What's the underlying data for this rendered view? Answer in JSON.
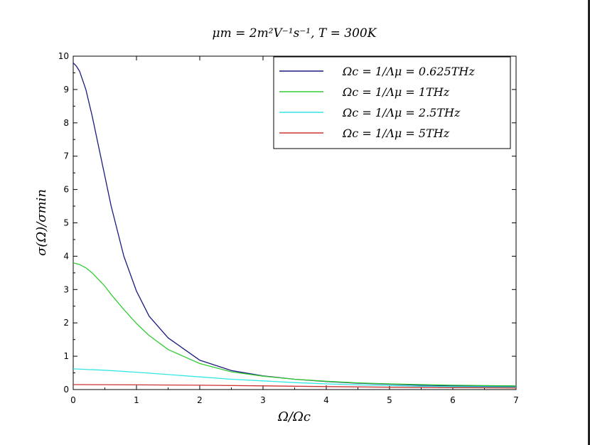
{
  "chart_data": {
    "type": "line",
    "title": "μm = 2m²V⁻¹s⁻¹, T = 300K",
    "xlabel": "Ω/Ωc",
    "ylabel": "σ(Ω)/σmin",
    "xlim": [
      0,
      7
    ],
    "ylim": [
      0,
      10
    ],
    "xticks": [
      0,
      1,
      2,
      3,
      4,
      5,
      6,
      7
    ],
    "yticks": [
      0,
      1,
      2,
      3,
      4,
      5,
      6,
      7,
      8,
      9,
      10
    ],
    "grid": false,
    "legend_position": "top-right",
    "series": [
      {
        "name": "Ωc = 1/Λμ = 0.625THz",
        "color": "#1a1a80",
        "x": [
          0,
          0.05,
          0.1,
          0.2,
          0.3,
          0.4,
          0.5,
          0.6,
          0.8,
          1.0,
          1.2,
          1.5,
          2.0,
          2.5,
          3.0,
          3.5,
          4.0,
          4.5,
          5.0,
          5.5,
          6.0,
          6.5,
          7.0
        ],
        "y": [
          9.8,
          9.7,
          9.55,
          9.0,
          8.2,
          7.3,
          6.4,
          5.5,
          4.0,
          2.95,
          2.2,
          1.55,
          0.88,
          0.57,
          0.41,
          0.31,
          0.24,
          0.19,
          0.16,
          0.13,
          0.11,
          0.1,
          0.09
        ]
      },
      {
        "name": "Ωc = 1/Λμ = 1THz",
        "color": "#33cc33",
        "x": [
          0,
          0.1,
          0.2,
          0.3,
          0.4,
          0.5,
          0.6,
          0.8,
          1.0,
          1.2,
          1.5,
          2.0,
          2.5,
          3.0,
          3.5,
          4.0,
          4.5,
          5.0,
          5.5,
          6.0,
          6.5,
          7.0
        ],
        "y": [
          3.8,
          3.75,
          3.65,
          3.5,
          3.3,
          3.1,
          2.85,
          2.4,
          1.98,
          1.62,
          1.2,
          0.78,
          0.53,
          0.4,
          0.31,
          0.25,
          0.2,
          0.17,
          0.15,
          0.13,
          0.12,
          0.11
        ]
      },
      {
        "name": "Ωc = 1/Λμ = 2.5THz",
        "color": "#33e6e6",
        "x": [
          0,
          0.5,
          1.0,
          1.5,
          2.0,
          2.5,
          3.0,
          3.5,
          4.0,
          4.5,
          5.0,
          5.5,
          6.0,
          6.5,
          7.0
        ],
        "y": [
          0.62,
          0.58,
          0.52,
          0.45,
          0.38,
          0.31,
          0.26,
          0.21,
          0.17,
          0.14,
          0.12,
          0.1,
          0.09,
          0.08,
          0.07
        ]
      },
      {
        "name": "Ωc = 1/Λμ = 5THz",
        "color": "#cc3333",
        "x": [
          0,
          1.0,
          2.0,
          3.0,
          4.0,
          5.0,
          6.0,
          7.0
        ],
        "y": [
          0.15,
          0.14,
          0.13,
          0.11,
          0.09,
          0.07,
          0.06,
          0.05
        ]
      }
    ]
  }
}
